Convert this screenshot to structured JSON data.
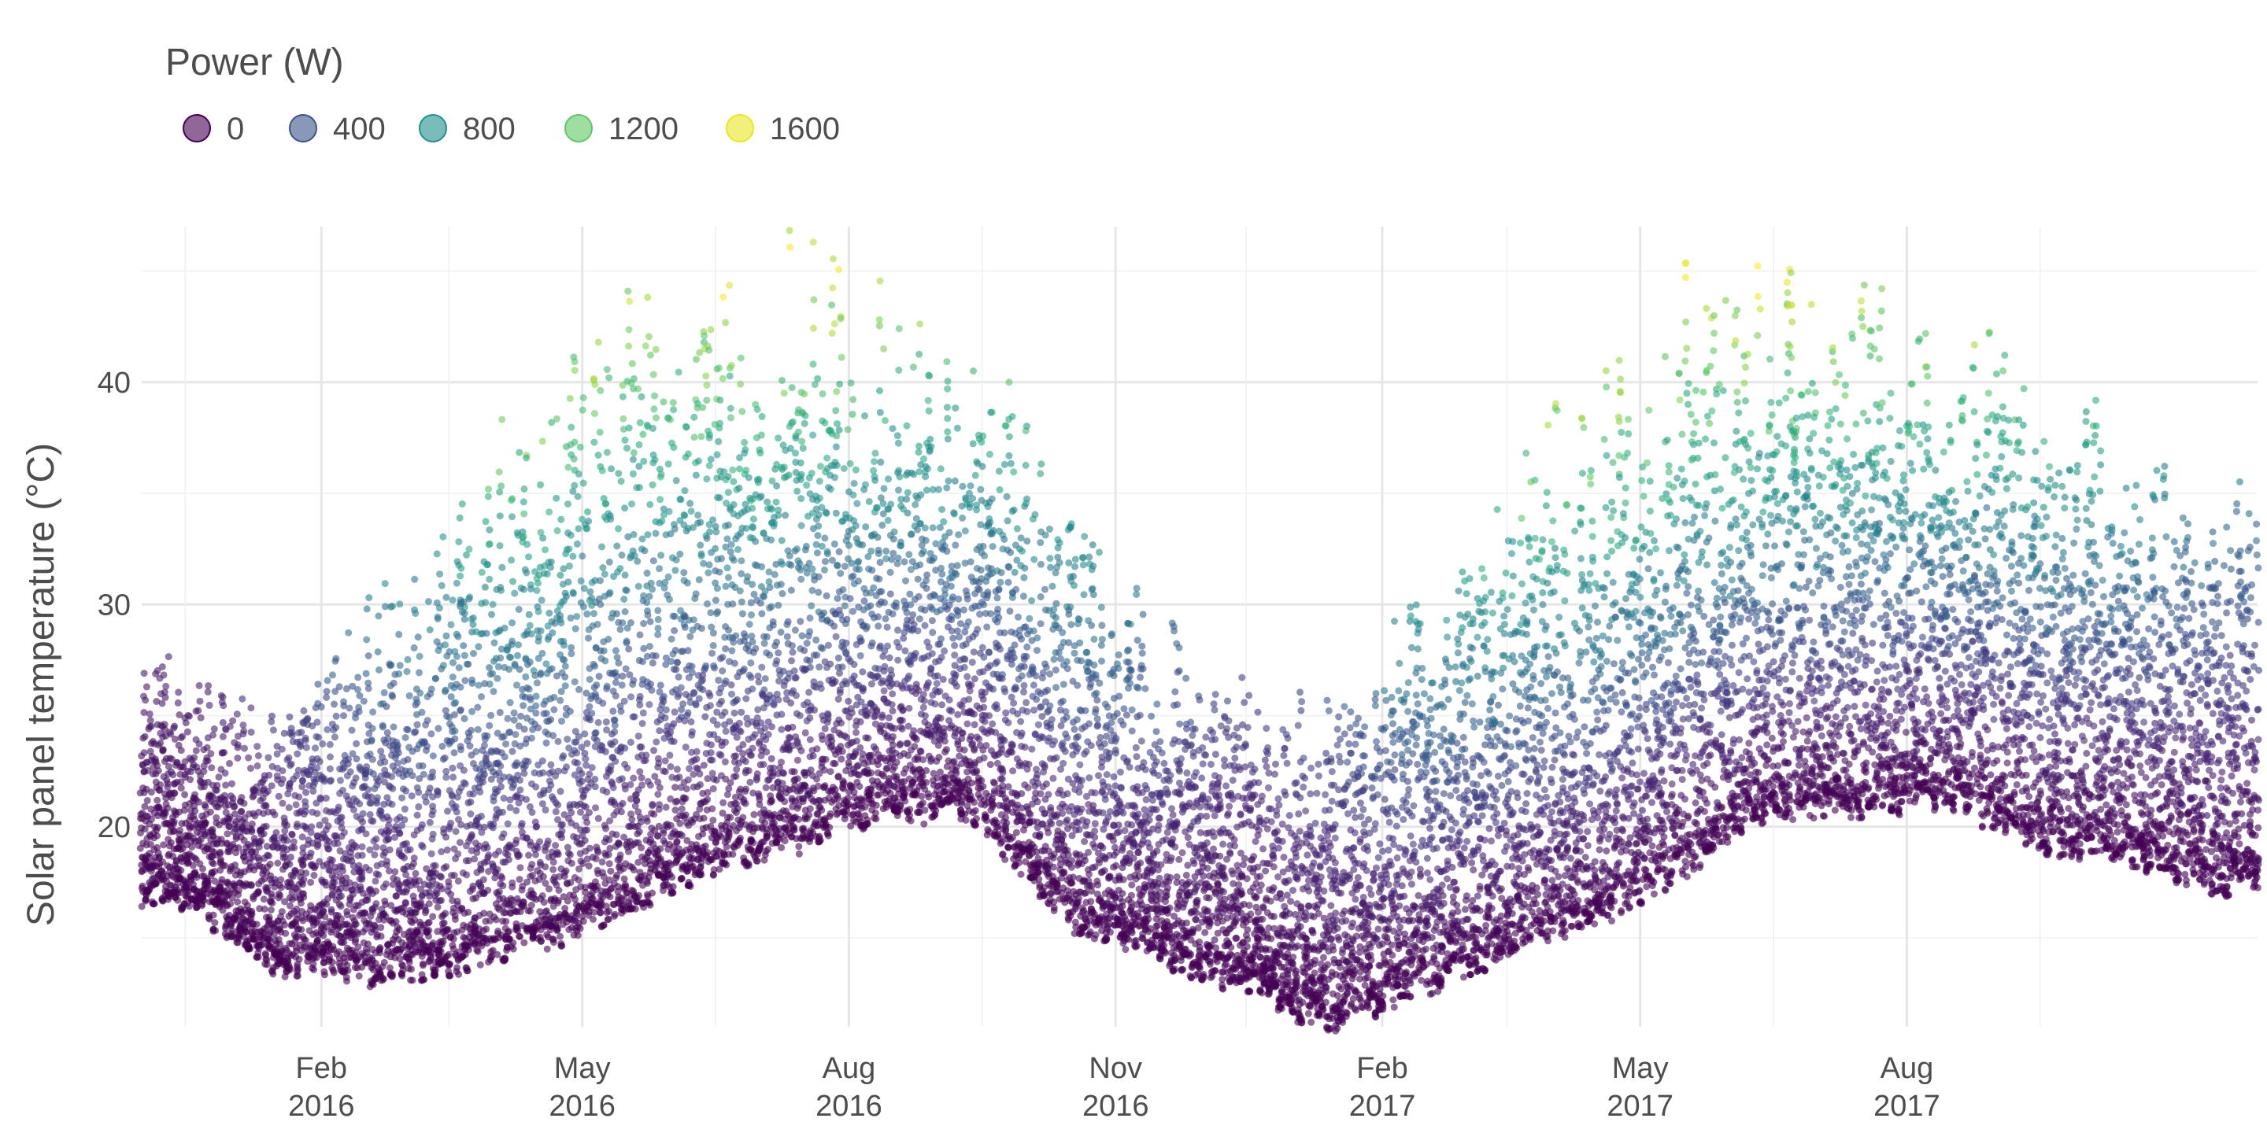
{
  "chart_data": {
    "type": "scatter",
    "title": "",
    "xlabel": "",
    "ylabel": "Solar panel temperature (°C)",
    "x_scale": "date",
    "xlim": [
      "2015-12-01",
      "2017-11-30"
    ],
    "ylim": [
      11,
      47
    ],
    "y_ticks": [
      20,
      30,
      40
    ],
    "x_ticks": [
      {
        "date": "2016-02-01",
        "label_top": "Feb",
        "label_bottom": "2016"
      },
      {
        "date": "2016-05-01",
        "label_top": "May",
        "label_bottom": "2016"
      },
      {
        "date": "2016-08-01",
        "label_top": "Aug",
        "label_bottom": "2016"
      },
      {
        "date": "2016-11-01",
        "label_top": "Nov",
        "label_bottom": "2016"
      },
      {
        "date": "2017-02-01",
        "label_top": "Feb",
        "label_bottom": "2017"
      },
      {
        "date": "2017-05-01",
        "label_top": "May",
        "label_bottom": "2017"
      },
      {
        "date": "2017-08-01",
        "label_top": "Aug",
        "label_bottom": "2017"
      }
    ],
    "grid": true,
    "legend": {
      "title": "Power (W)",
      "position": "top-left",
      "entries": [
        {
          "label": "0",
          "value": 0,
          "color": "#440154"
        },
        {
          "label": "400",
          "value": 400,
          "color": "#3b528b"
        },
        {
          "label": "800",
          "value": 800,
          "color": "#21908c"
        },
        {
          "label": "1200",
          "value": 1200,
          "color": "#5dc863"
        },
        {
          "label": "1600",
          "value": 1600,
          "color": "#e8e620"
        }
      ]
    },
    "color_scale": {
      "name": "viridis",
      "field": "power",
      "domain": [
        0,
        1650
      ],
      "stops": [
        "#440154",
        "#472c7a",
        "#3b528b",
        "#2c728e",
        "#21908c",
        "#27ad81",
        "#5dc863",
        "#aadc32",
        "#fde725"
      ]
    },
    "point_opacity": 0.6,
    "series": [
      {
        "name": "Power (W)",
        "points_by_month": [
          {
            "month": "2015-12",
            "temp_min": 17.0,
            "temp_max": 28.2,
            "power_max": 150
          },
          {
            "month": "2016-01",
            "temp_min": 14.0,
            "temp_max": 25.5,
            "power_max": 250
          },
          {
            "month": "2016-02",
            "temp_min": 13.5,
            "temp_max": 31.0,
            "power_max": 700
          },
          {
            "month": "2016-03",
            "temp_min": 13.8,
            "temp_max": 35.2,
            "power_max": 1000
          },
          {
            "month": "2016-04",
            "temp_min": 14.8,
            "temp_max": 41.0,
            "power_max": 1450
          },
          {
            "month": "2016-05",
            "temp_min": 16.5,
            "temp_max": 46.0,
            "power_max": 1500
          },
          {
            "month": "2016-06",
            "temp_min": 18.5,
            "temp_max": 46.3,
            "power_max": 1600
          },
          {
            "month": "2016-07",
            "temp_min": 19.5,
            "temp_max": 47.0,
            "power_max": 1650
          },
          {
            "month": "2016-08",
            "temp_min": 21.0,
            "temp_max": 45.5,
            "power_max": 1450
          },
          {
            "month": "2016-09",
            "temp_min": 20.5,
            "temp_max": 42.0,
            "power_max": 1200
          },
          {
            "month": "2016-10",
            "temp_min": 16.0,
            "temp_max": 36.5,
            "power_max": 1000
          },
          {
            "month": "2016-11",
            "temp_min": 14.5,
            "temp_max": 30.0,
            "power_max": 600
          },
          {
            "month": "2016-12",
            "temp_min": 13.0,
            "temp_max": 27.5,
            "power_max": 350
          },
          {
            "month": "2017-01",
            "temp_min": 11.2,
            "temp_max": 26.8,
            "power_max": 450
          },
          {
            "month": "2017-02",
            "temp_min": 13.0,
            "temp_max": 31.5,
            "power_max": 900
          },
          {
            "month": "2017-03",
            "temp_min": 14.5,
            "temp_max": 37.5,
            "power_max": 1300
          },
          {
            "month": "2017-04",
            "temp_min": 16.0,
            "temp_max": 42.0,
            "power_max": 1500
          },
          {
            "month": "2017-05",
            "temp_min": 18.0,
            "temp_max": 45.8,
            "power_max": 1600
          },
          {
            "month": "2017-06",
            "temp_min": 21.0,
            "temp_max": 46.6,
            "power_max": 1650
          },
          {
            "month": "2017-07",
            "temp_min": 21.0,
            "temp_max": 46.2,
            "power_max": 1600
          },
          {
            "month": "2017-08",
            "temp_min": 21.5,
            "temp_max": 44.5,
            "power_max": 1450
          },
          {
            "month": "2017-09",
            "temp_min": 19.5,
            "temp_max": 42.0,
            "power_max": 1250
          },
          {
            "month": "2017-10",
            "temp_min": 19.0,
            "temp_max": 38.5,
            "power_max": 1000
          },
          {
            "month": "2017-11",
            "temp_min": 17.5,
            "temp_max": 36.5,
            "power_max": 700
          }
        ]
      }
    ]
  }
}
